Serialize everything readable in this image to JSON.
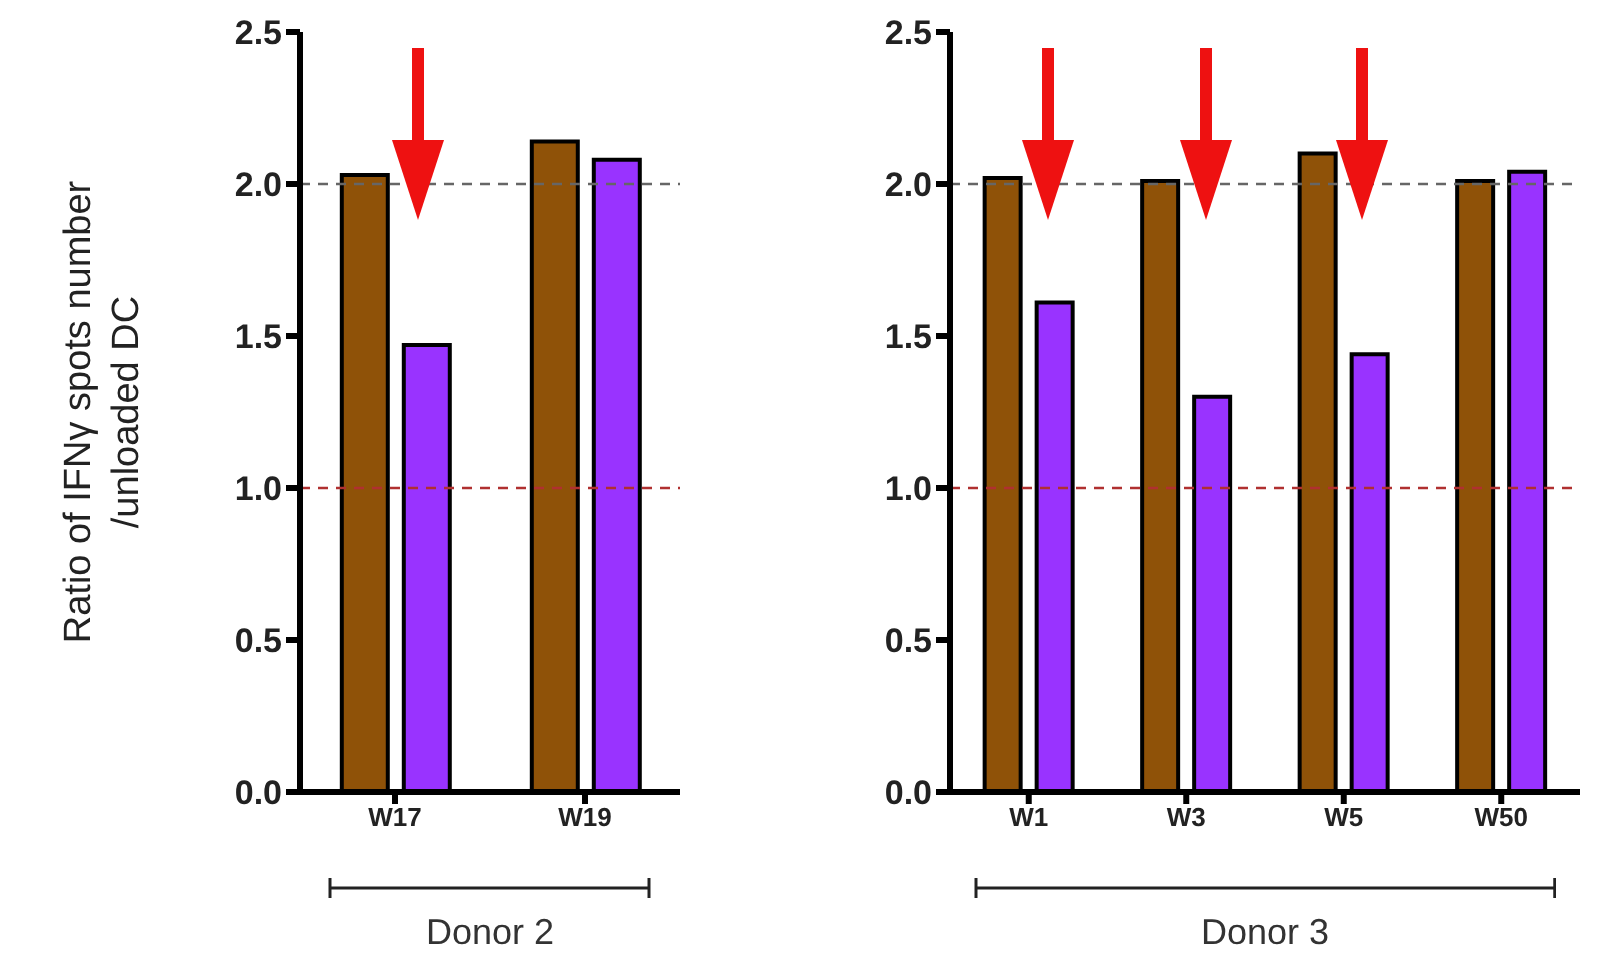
{
  "chart_data": [
    {
      "type": "bar",
      "ylabel": "Ratio of IFNγ spots number /unloaded DC",
      "categories": [
        "W17",
        "W19"
      ],
      "series": [
        {
          "color": "#8f5208",
          "values": [
            2.03,
            2.14
          ]
        },
        {
          "color": "#9933ff",
          "values": [
            1.47,
            2.08
          ]
        }
      ],
      "ylim": [
        0,
        2.5
      ],
      "yticks": [
        {
          "value": 0,
          "label": "0.0"
        },
        {
          "value": 0.5,
          "label": "0.5"
        },
        {
          "value": 1,
          "label": "1.0"
        },
        {
          "value": 1.5,
          "label": "1.5"
        },
        {
          "value": 2,
          "label": "2.0"
        },
        {
          "value": 2.5,
          "label": "2.5"
        }
      ],
      "ref_lines": [
        {
          "axis": "y",
          "value": 2,
          "color": "#666666",
          "line_style": "dashed"
        },
        {
          "axis": "y",
          "value": 1,
          "color": "#b03030",
          "line_style": "dashed"
        }
      ],
      "annotations": [
        "Donor 2"
      ],
      "grid": false,
      "legend": false
    },
    {
      "type": "bar",
      "categories": [
        "W1",
        "W3",
        "W5",
        "W50"
      ],
      "series": [
        {
          "color": "#8f5208",
          "values": [
            2.02,
            2.01,
            2.1,
            2.01
          ]
        },
        {
          "color": "#9933ff",
          "values": [
            1.61,
            1.3,
            1.44,
            2.04
          ]
        }
      ],
      "ylim": [
        0,
        2.5
      ],
      "yticks": [
        {
          "value": 0,
          "label": "0.0"
        },
        {
          "value": 0.5,
          "label": "0.5"
        },
        {
          "value": 1,
          "label": "1.0"
        },
        {
          "value": 1.5,
          "label": "1.5"
        },
        {
          "value": 2,
          "label": "2.0"
        },
        {
          "value": 2.5,
          "label": "2.5"
        }
      ],
      "ref_lines": [
        {
          "axis": "y",
          "value": 2,
          "color": "#666666",
          "line_style": "dashed"
        },
        {
          "axis": "y",
          "value": 1,
          "color": "#b03030",
          "line_style": "dashed"
        }
      ],
      "annotations": [
        "Donor 3"
      ],
      "grid": false,
      "legend": false
    }
  ]
}
